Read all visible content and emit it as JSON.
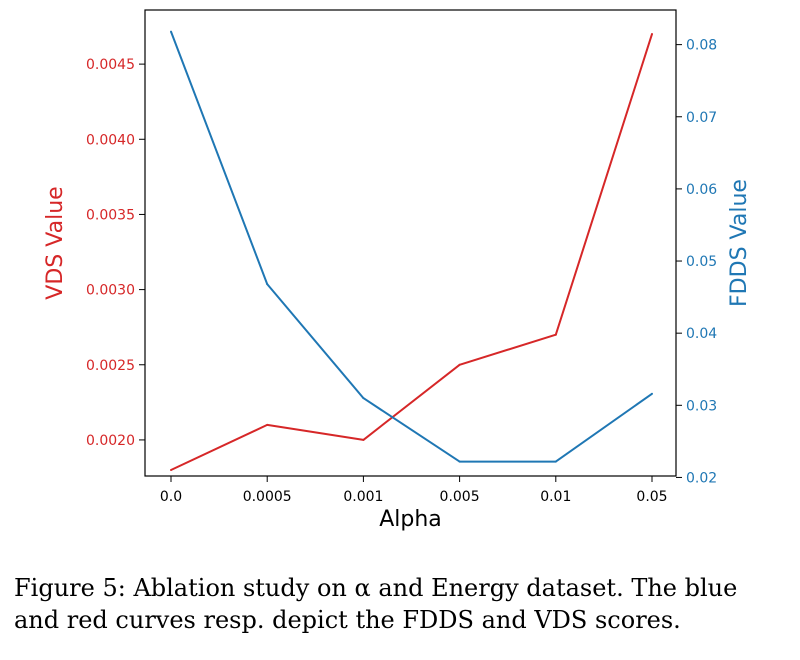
{
  "chart_data": {
    "type": "line",
    "categories": [
      "0.0",
      "0.0005",
      "0.001",
      "0.005",
      "0.01",
      "0.05"
    ],
    "xlabel": "Alpha",
    "series": [
      {
        "name": "VDS",
        "axis": "left",
        "color": "#d62728",
        "values": [
          0.0018,
          0.0021,
          0.002,
          0.0025,
          0.0027,
          0.0047
        ]
      },
      {
        "name": "FDDS",
        "axis": "right",
        "color": "#1f77b4",
        "values": [
          0.0818,
          0.0468,
          0.031,
          0.0222,
          0.0222,
          0.0316
        ]
      }
    ],
    "left_axis": {
      "label": "VDS Value",
      "color": "#d62728",
      "range": [
        0.00176,
        0.00486
      ],
      "ticks": [
        0.002,
        0.0025,
        0.003,
        0.0035,
        0.004,
        0.0045
      ],
      "tick_labels": [
        "0.0020",
        "0.0025",
        "0.0030",
        "0.0035",
        "0.0040",
        "0.0045"
      ]
    },
    "right_axis": {
      "label": "FDDS Value",
      "color": "#1f77b4",
      "range": [
        0.0202,
        0.0848
      ],
      "ticks": [
        0.02,
        0.03,
        0.04,
        0.05,
        0.06,
        0.07,
        0.08
      ],
      "tick_labels": [
        "0.02",
        "0.03",
        "0.04",
        "0.05",
        "0.06",
        "0.07",
        "0.08"
      ]
    },
    "grid": false
  },
  "caption": {
    "line1": "Figure 5: Ablation study on α and Energy dataset. The blue",
    "line2": "and red curves resp. depict the FDDS and VDS scores."
  }
}
